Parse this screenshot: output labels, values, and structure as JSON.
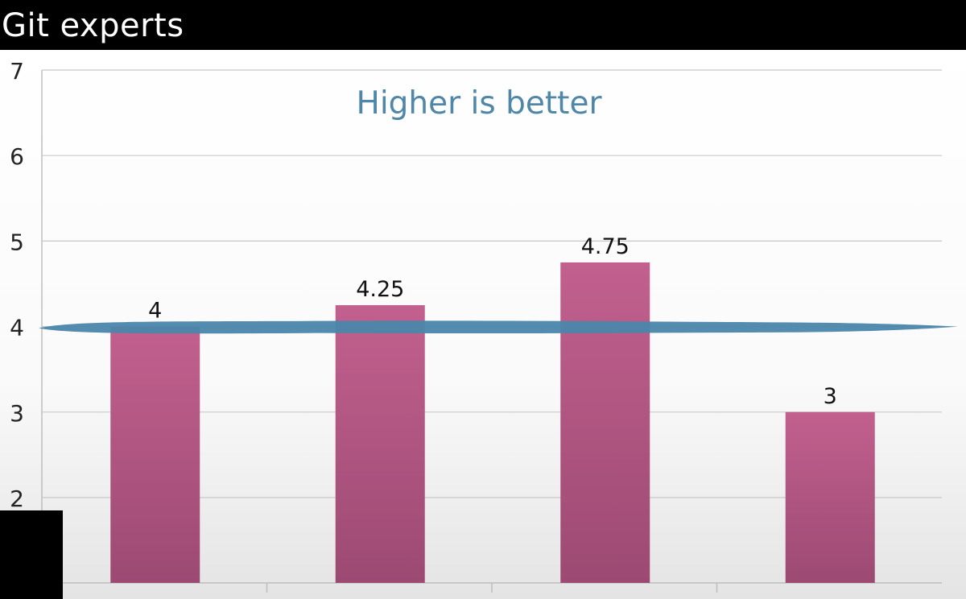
{
  "page": {
    "title": "Git experts"
  },
  "chart_data": {
    "type": "bar",
    "categories": [
      "",
      "",
      "",
      ""
    ],
    "values": [
      4,
      4.25,
      4.75,
      3
    ],
    "data_labels": [
      "4",
      "4.25",
      "4.75",
      "3"
    ],
    "annotation": "Higher is better",
    "reference_line": 4,
    "ylim": [
      1,
      7
    ],
    "yticks": [
      2,
      3,
      4,
      5,
      6,
      7
    ],
    "grid": true,
    "colors": {
      "bar": "#b85a86",
      "bar_dark": "#9c4a73",
      "annotation": "#4f87a8",
      "reference_line": "#4a86aa",
      "grid": "#c8c8c8",
      "background_top": "#ffffff",
      "background_bottom": "#e6e6e6"
    }
  }
}
